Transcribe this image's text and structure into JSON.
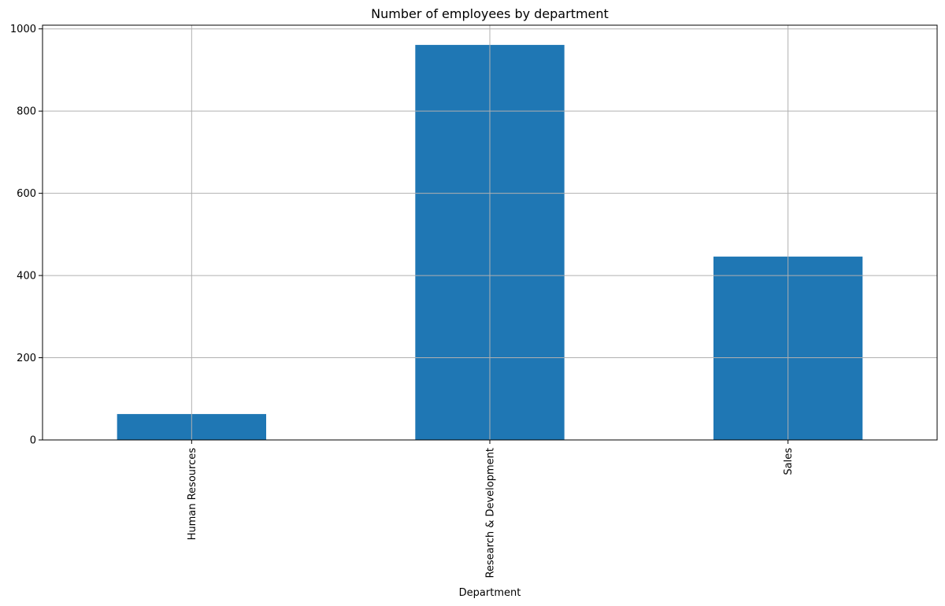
{
  "chart_data": {
    "type": "bar",
    "title": "Number of employees by department",
    "xlabel": "Department",
    "ylabel": "",
    "categories": [
      "Human Resources",
      "Research & Development",
      "Sales"
    ],
    "values": [
      63,
      961,
      446
    ],
    "ylim": [
      0,
      1009
    ],
    "yticks": [
      0,
      200,
      400,
      600,
      800,
      1000
    ],
    "ytick_labels": [
      "0",
      "200",
      "400",
      "600",
      "800",
      "1000"
    ],
    "grid": true,
    "legend": "none",
    "x_tick_rotation": "vertical",
    "colors": {
      "bar": "#1f77b4",
      "grid": "#b0b0b0",
      "axis": "#000000"
    }
  }
}
